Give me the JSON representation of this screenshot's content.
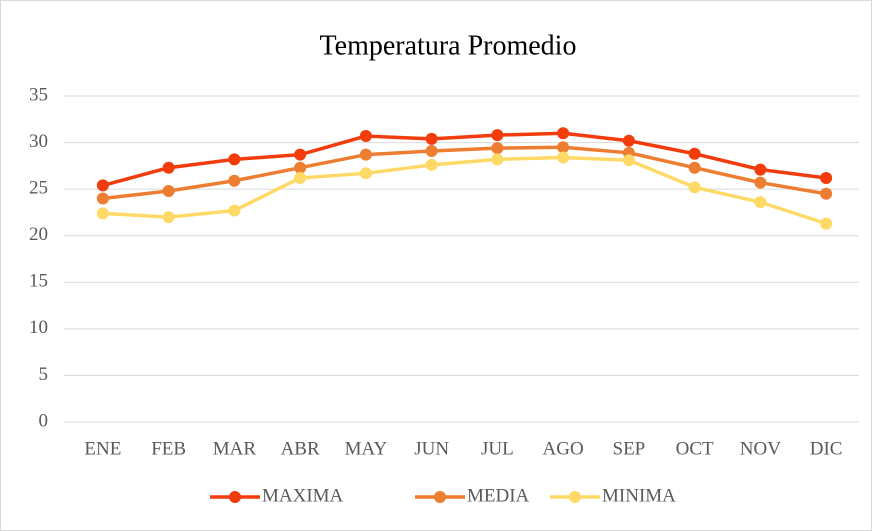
{
  "chart_data": {
    "type": "line",
    "title": "Temperatura Promedio",
    "categories": [
      "ENE",
      "FEB",
      "MAR",
      "ABR",
      "MAY",
      "JUN",
      "JUL",
      "AGO",
      "SEP",
      "OCT",
      "NOV",
      "DIC"
    ],
    "series": [
      {
        "name": "MAXIMA",
        "color": "#f23c0c",
        "values": [
          25.4,
          27.3,
          28.2,
          28.7,
          30.7,
          30.4,
          30.8,
          31.0,
          30.2,
          28.8,
          27.1,
          26.2
        ]
      },
      {
        "name": "MEDIA",
        "color": "#ed7d31",
        "values": [
          24.0,
          24.8,
          25.9,
          27.3,
          28.7,
          29.1,
          29.4,
          29.5,
          28.9,
          27.3,
          25.7,
          24.5
        ]
      },
      {
        "name": "MINIMA",
        "color": "#ffd966",
        "values": [
          22.4,
          22.0,
          22.7,
          26.2,
          26.7,
          27.6,
          28.2,
          28.4,
          28.1,
          25.2,
          23.6,
          21.3
        ]
      }
    ],
    "ylim": [
      0,
      35
    ],
    "yticks": [
      0,
      5,
      10,
      15,
      20,
      25,
      30,
      35
    ],
    "grid": true,
    "legend": "bottom"
  }
}
